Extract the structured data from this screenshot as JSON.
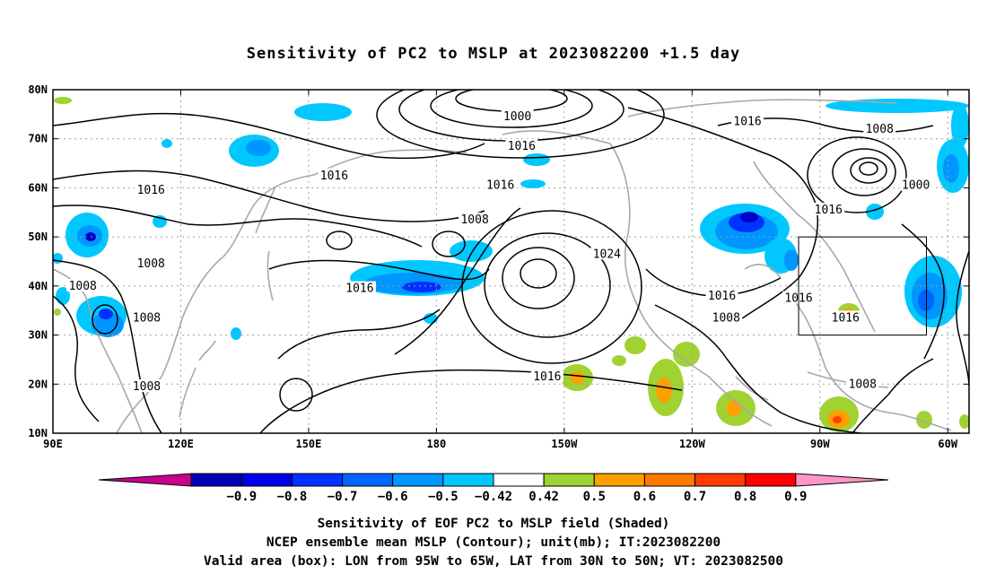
{
  "title": "Sensitivity of PC2 to MSLP at 2023082200 +1.5 day",
  "map": {
    "lon_range": [
      90,
      305
    ],
    "lat_range": [
      10,
      80
    ],
    "x_ticks": [
      {
        "lon": 90,
        "label": "90E"
      },
      {
        "lon": 120,
        "label": "120E"
      },
      {
        "lon": 150,
        "label": "150E"
      },
      {
        "lon": 180,
        "label": "180"
      },
      {
        "lon": 210,
        "label": "150W"
      },
      {
        "lon": 240,
        "label": "120W"
      },
      {
        "lon": 270,
        "label": "90W"
      },
      {
        "lon": 300,
        "label": "60W"
      }
    ],
    "y_ticks": [
      {
        "lat": 10,
        "label": "10N"
      },
      {
        "lat": 20,
        "label": "20N"
      },
      {
        "lat": 30,
        "label": "30N"
      },
      {
        "lat": 40,
        "label": "40N"
      },
      {
        "lat": 50,
        "label": "50N"
      },
      {
        "lat": 60,
        "label": "60N"
      },
      {
        "lat": 70,
        "label": "70N"
      },
      {
        "lat": 80,
        "label": "80N"
      }
    ],
    "contour_color": "#000000",
    "coast_color": "#a8a8a8",
    "grid_color": "#a0a0a0",
    "valid_box": {
      "lon_min": 265,
      "lon_max": 295,
      "lat_min": 30,
      "lat_max": 50
    },
    "contour_labels": [
      {
        "text": "1000",
        "lon": 199,
        "lat": 74.5
      },
      {
        "text": "1016",
        "lon": 200,
        "lat": 68.5
      },
      {
        "text": "1016",
        "lon": 253,
        "lat": 73.5
      },
      {
        "text": "1008",
        "lon": 284,
        "lat": 72
      },
      {
        "text": "1016",
        "lon": 156,
        "lat": 62.5
      },
      {
        "text": "1016",
        "lon": 113,
        "lat": 59.5
      },
      {
        "text": "1016",
        "lon": 195,
        "lat": 60.5
      },
      {
        "text": "1000",
        "lon": 292.5,
        "lat": 60.5
      },
      {
        "text": "1008",
        "lon": 189,
        "lat": 53.5
      },
      {
        "text": "1016",
        "lon": 272,
        "lat": 55.5
      },
      {
        "text": "1008",
        "lon": 113,
        "lat": 44.5
      },
      {
        "text": "1024",
        "lon": 220,
        "lat": 46.5
      },
      {
        "text": "1016",
        "lon": 162,
        "lat": 39.5
      },
      {
        "text": "1008",
        "lon": 97,
        "lat": 40
      },
      {
        "text": "1008",
        "lon": 112,
        "lat": 33.5
      },
      {
        "text": "1016",
        "lon": 247,
        "lat": 38
      },
      {
        "text": "1016",
        "lon": 265,
        "lat": 37.5
      },
      {
        "text": "1008",
        "lon": 248,
        "lat": 33.5
      },
      {
        "text": "1016",
        "lon": 276,
        "lat": 33.5
      },
      {
        "text": "1016",
        "lon": 206,
        "lat": 21.5
      },
      {
        "text": "1008",
        "lon": 280,
        "lat": 20
      },
      {
        "text": "1008",
        "lon": 112,
        "lat": 19.5
      }
    ],
    "shaded_colors": {
      "neg_0_42": "#00c8ff",
      "neg_0_5": "#0096ff",
      "neg_0_6": "#0064ff",
      "neg_0_7": "#0032ff",
      "neg_0_8": "#0000c8",
      "pos_0_42": "#a0d232",
      "pos_0_5": "#ffa000",
      "pos_0_6": "#ff7800",
      "pos_0_7": "#ff3c00"
    }
  },
  "colorbar": {
    "colors": [
      "#c8008c",
      "#0000b4",
      "#0000e6",
      "#0032ff",
      "#0064ff",
      "#0096ff",
      "#00c8ff",
      "#ffffff",
      "#a0d232",
      "#ffa000",
      "#ff7800",
      "#ff3c00",
      "#ff0000",
      "#ff96c8"
    ],
    "labels": [
      "-0.9",
      "-0.8",
      "-0.7",
      "-0.6",
      "-0.5",
      "-0.42",
      "0.42",
      "0.5",
      "0.6",
      "0.7",
      "0.8",
      "0.9"
    ]
  },
  "captions": [
    "Sensitivity of EOF PC2 to MSLP field (Shaded)",
    "NCEP ensemble mean MSLP (Contour); unit(mb); IT:2023082200",
    "Valid area (box): LON from 95W to 65W, LAT from 30N to 50N; VT: 2023082500"
  ]
}
